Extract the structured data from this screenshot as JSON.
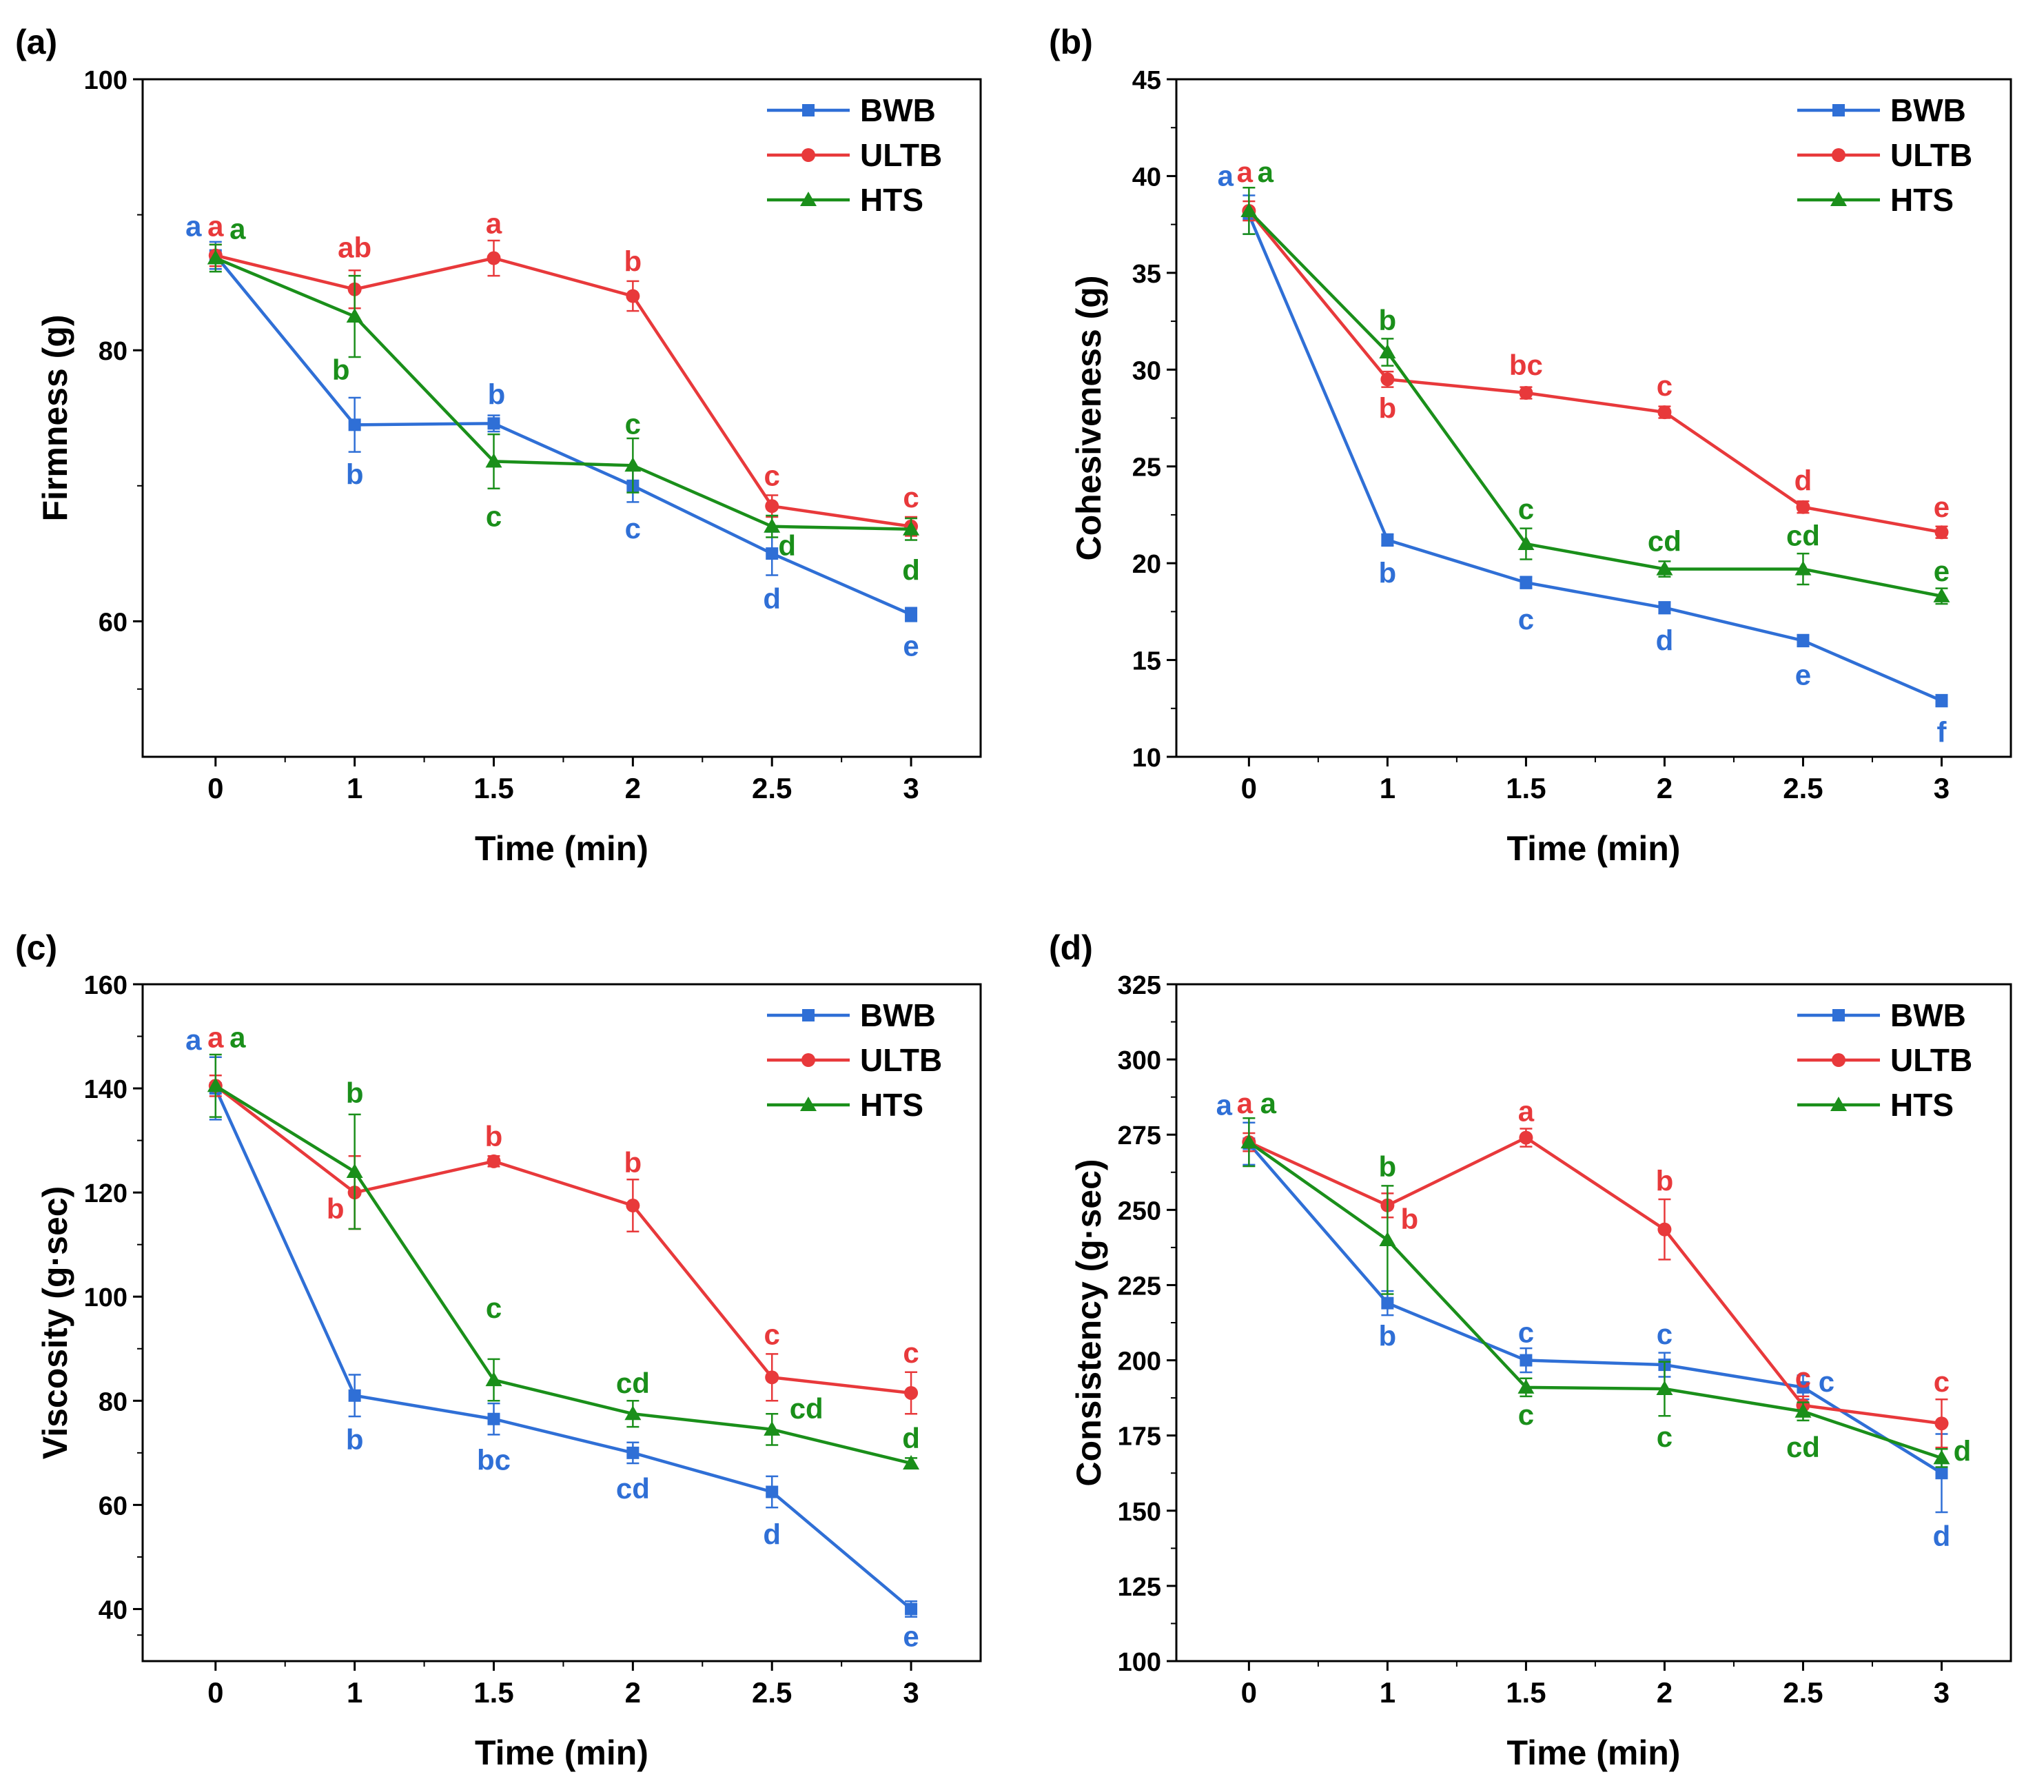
{
  "colors": {
    "BWB": "#2f6fd6",
    "ULTB": "#e8393b",
    "HTS": "#1a8f1a",
    "axis": "#000000"
  },
  "series_names": [
    "BWB",
    "ULTB",
    "HTS"
  ],
  "chart_data": [
    {
      "type": "line",
      "panel_label": "(a)",
      "xlabel": "Time (min)",
      "ylabel": "Firmness (g)",
      "x": [
        0,
        1,
        1.5,
        2,
        2.5,
        3
      ],
      "x_tick_labels": [
        "0",
        "1",
        "1.5",
        "2",
        "2.5",
        "3"
      ],
      "ylim": [
        50,
        100
      ],
      "y_ticks": [
        60,
        80,
        100
      ],
      "legend": "top-right",
      "series": [
        {
          "name": "BWB",
          "marker": "square",
          "values": [
            87.0,
            74.5,
            74.6,
            70.0,
            65.0,
            60.5
          ],
          "errors": [
            1.0,
            2.0,
            0.6,
            1.2,
            1.6,
            0.5
          ],
          "letters": [
            "a",
            "b",
            "b",
            "c",
            "d",
            "e"
          ]
        },
        {
          "name": "ULTB",
          "marker": "circle",
          "values": [
            87.0,
            84.5,
            86.8,
            84.0,
            68.5,
            67.0
          ],
          "errors": [
            0.8,
            1.4,
            1.3,
            1.1,
            0.8,
            0.7
          ],
          "letters": [
            "a",
            "ab",
            "a",
            "b",
            "c",
            "c"
          ]
        },
        {
          "name": "HTS",
          "marker": "triangle",
          "values": [
            86.8,
            82.5,
            71.8,
            71.5,
            67.0,
            66.8
          ],
          "errors": [
            1.0,
            3.0,
            2.0,
            2.0,
            0.8,
            0.8
          ],
          "letters": [
            "a",
            "b",
            "c",
            "c",
            "d",
            "d"
          ]
        }
      ]
    },
    {
      "type": "line",
      "panel_label": "(b)",
      "xlabel": "Time (min)",
      "ylabel": "Cohesiveness (g)",
      "x": [
        0,
        1,
        1.5,
        2,
        2.5,
        3
      ],
      "x_tick_labels": [
        "0",
        "1",
        "1.5",
        "2",
        "2.5",
        "3"
      ],
      "ylim": [
        10,
        45
      ],
      "y_ticks": [
        10,
        15,
        20,
        25,
        30,
        35,
        40,
        45
      ],
      "legend": "top-right",
      "series": [
        {
          "name": "BWB",
          "marker": "square",
          "values": [
            38.0,
            21.2,
            19.0,
            17.7,
            16.0,
            12.9
          ],
          "errors": [
            1.0,
            0.3,
            0.3,
            0.3,
            0.3,
            0.3
          ],
          "letters": [
            "a",
            "b",
            "c",
            "d",
            "e",
            "f"
          ]
        },
        {
          "name": "ULTB",
          "marker": "circle",
          "values": [
            38.2,
            29.5,
            28.8,
            27.8,
            22.9,
            21.6
          ],
          "errors": [
            0.5,
            0.4,
            0.3,
            0.3,
            0.3,
            0.3
          ],
          "letters": [
            "a",
            "b",
            "bc",
            "c",
            "d",
            "e"
          ]
        },
        {
          "name": "HTS",
          "marker": "triangle",
          "values": [
            38.2,
            30.9,
            21.0,
            19.7,
            19.7,
            18.3
          ],
          "errors": [
            1.2,
            0.7,
            0.8,
            0.4,
            0.8,
            0.4
          ],
          "letters": [
            "a",
            "b",
            "c",
            "cd",
            "cd",
            "e"
          ]
        }
      ]
    },
    {
      "type": "line",
      "panel_label": "(c)",
      "xlabel": "Time (min)",
      "ylabel": "Viscosity (g·sec)",
      "x": [
        0,
        1,
        1.5,
        2,
        2.5,
        3
      ],
      "x_tick_labels": [
        "0",
        "1",
        "1.5",
        "2",
        "2.5",
        "3"
      ],
      "ylim": [
        30,
        160
      ],
      "y_ticks": [
        40,
        60,
        80,
        100,
        120,
        140,
        160
      ],
      "legend": "top-right",
      "series": [
        {
          "name": "BWB",
          "marker": "square",
          "values": [
            140.0,
            81.0,
            76.5,
            70.0,
            62.5,
            40.0
          ],
          "errors": [
            6.0,
            4.0,
            3.0,
            2.0,
            3.0,
            1.5
          ],
          "letters": [
            "a",
            "b",
            "bc",
            "cd",
            "d",
            "e"
          ]
        },
        {
          "name": "ULTB",
          "marker": "circle",
          "values": [
            140.5,
            120.0,
            126.0,
            117.5,
            84.5,
            81.5
          ],
          "errors": [
            2.0,
            7.0,
            1.0,
            5.0,
            4.5,
            4.0
          ],
          "letters": [
            "a",
            "b",
            "b",
            "b",
            "c",
            "c"
          ]
        },
        {
          "name": "HTS",
          "marker": "triangle",
          "values": [
            140.5,
            124.0,
            84.0,
            77.5,
            74.5,
            68.0
          ],
          "errors": [
            6.0,
            11.0,
            4.0,
            2.5,
            3.0,
            1.0
          ],
          "letters": [
            "a",
            "b",
            "c",
            "cd",
            "cd",
            "d"
          ]
        }
      ]
    },
    {
      "type": "line",
      "panel_label": "(d)",
      "xlabel": "Time (min)",
      "ylabel": "Consistency (g·sec)",
      "x": [
        0,
        1,
        1.5,
        2,
        2.5,
        3
      ],
      "x_tick_labels": [
        "0",
        "1",
        "1.5",
        "2",
        "2.5",
        "3"
      ],
      "ylim": [
        100,
        325
      ],
      "y_ticks": [
        100,
        125,
        150,
        175,
        200,
        225,
        250,
        275,
        300,
        325
      ],
      "legend": "top-right",
      "series": [
        {
          "name": "BWB",
          "marker": "square",
          "values": [
            272.0,
            219.0,
            200.0,
            198.5,
            191.0,
            162.5
          ],
          "errors": [
            7.0,
            4.0,
            4.0,
            4.0,
            4.0,
            13.0
          ],
          "letters": [
            "a",
            "b",
            "c",
            "c",
            "c",
            "d"
          ]
        },
        {
          "name": "ULTB",
          "marker": "circle",
          "values": [
            272.5,
            251.5,
            274.0,
            243.5,
            185.0,
            179.0
          ],
          "errors": [
            3.0,
            4.0,
            3.0,
            10.0,
            3.0,
            8.0
          ],
          "letters": [
            "a",
            "b",
            "a",
            "b",
            "c",
            "c"
          ]
        },
        {
          "name": "HTS",
          "marker": "triangle",
          "values": [
            272.5,
            240.0,
            191.0,
            190.5,
            183.0,
            167.5
          ],
          "errors": [
            8.0,
            18.0,
            3.0,
            9.0,
            3.0,
            3.0
          ],
          "letters": [
            "a",
            "b",
            "c",
            "c",
            "cd",
            "d"
          ]
        }
      ]
    }
  ]
}
